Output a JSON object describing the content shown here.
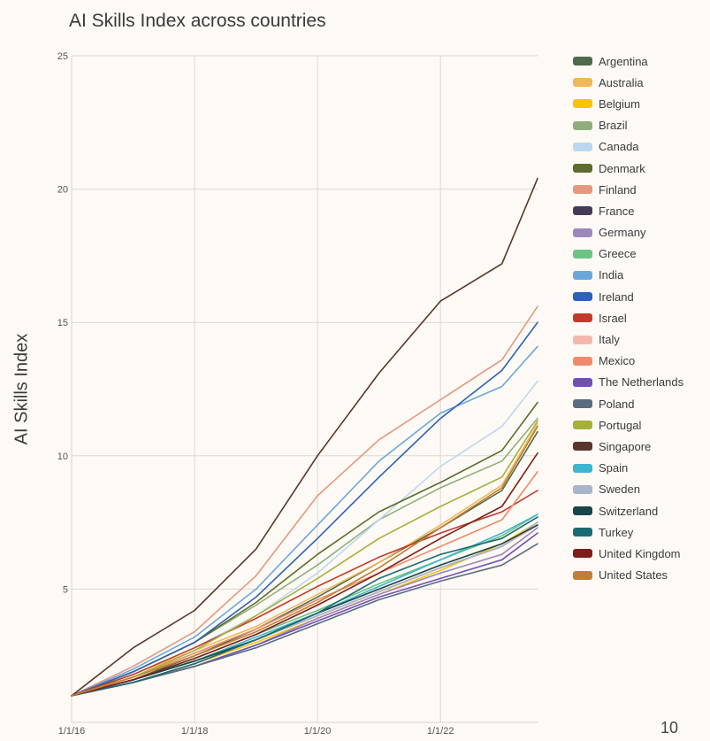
{
  "page_number": "10",
  "chart_data": {
    "type": "line",
    "title": "AI Skills Index across countries",
    "xlabel": "",
    "ylabel": "AI Skills Index",
    "x": [
      "1/1/16",
      "1/1/17",
      "1/1/18",
      "1/1/19",
      "1/1/20",
      "1/1/21",
      "1/1/22",
      "1/1/23",
      "8/1/23"
    ],
    "xticks": [
      "1/1/16",
      "1/1/18",
      "1/1/20",
      "1/1/22"
    ],
    "yticks": [
      5,
      10,
      15,
      20,
      25
    ],
    "ylim": [
      1,
      25
    ],
    "grid": true,
    "legend_position": "right",
    "series": [
      {
        "name": "Argentina",
        "color": "#4f6a4c",
        "values": [
          1,
          1.6,
          2.5,
          3.5,
          4.7,
          6.0,
          7.3,
          8.7,
          10.9
        ]
      },
      {
        "name": "Australia",
        "color": "#f0b85a",
        "values": [
          1,
          1.8,
          2.7,
          3.6,
          4.8,
          6.0,
          7.4,
          8.9,
          11.2
        ]
      },
      {
        "name": "Belgium",
        "color": "#f6c400",
        "values": [
          1,
          1.5,
          2.2,
          3.0,
          3.9,
          4.8,
          5.7,
          6.7,
          7.5
        ]
      },
      {
        "name": "Brazil",
        "color": "#8fae7c",
        "values": [
          1,
          1.9,
          3.0,
          4.4,
          5.9,
          7.6,
          8.8,
          9.8,
          11.4
        ]
      },
      {
        "name": "Canada",
        "color": "#bcd8ee",
        "values": [
          1,
          1.8,
          2.8,
          4.0,
          5.6,
          7.6,
          9.6,
          11.1,
          12.8
        ]
      },
      {
        "name": "Denmark",
        "color": "#5d6b2c",
        "values": [
          1,
          1.9,
          3.0,
          4.5,
          6.3,
          7.9,
          9.0,
          10.2,
          12.0
        ]
      },
      {
        "name": "Finland",
        "color": "#e4997f",
        "values": [
          1,
          2.1,
          3.4,
          5.5,
          8.5,
          10.6,
          12.1,
          13.6,
          15.6
        ]
      },
      {
        "name": "France",
        "color": "#463b57",
        "values": [
          1,
          1.6,
          2.3,
          3.1,
          4.0,
          4.9,
          5.8,
          6.6,
          7.4
        ]
      },
      {
        "name": "Germany",
        "color": "#9c87bd",
        "values": [
          1,
          1.5,
          2.1,
          2.9,
          3.9,
          4.8,
          5.6,
          6.3,
          7.3
        ]
      },
      {
        "name": "Greece",
        "color": "#6cc386",
        "values": [
          1,
          1.6,
          2.4,
          3.3,
          4.2,
          5.2,
          6.1,
          7.0,
          7.8
        ]
      },
      {
        "name": "India",
        "color": "#6ca7dc",
        "values": [
          1,
          2.0,
          3.2,
          5.0,
          7.4,
          9.8,
          11.6,
          12.6,
          14.1
        ]
      },
      {
        "name": "Ireland",
        "color": "#2d62b0",
        "values": [
          1,
          1.9,
          3.0,
          4.7,
          6.9,
          9.2,
          11.4,
          13.2,
          15.0
        ]
      },
      {
        "name": "Israel",
        "color": "#c13a2c",
        "values": [
          1,
          1.8,
          2.8,
          3.9,
          5.1,
          6.2,
          7.1,
          7.9,
          8.7
        ]
      },
      {
        "name": "Italy",
        "color": "#f4b7ae",
        "values": [
          1,
          1.6,
          2.3,
          3.1,
          4.0,
          4.9,
          5.8,
          6.6,
          7.4
        ]
      },
      {
        "name": "Mexico",
        "color": "#ef8a6a",
        "values": [
          1,
          1.7,
          2.6,
          3.5,
          4.6,
          5.6,
          6.6,
          7.6,
          9.4
        ]
      },
      {
        "name": "The Netherlands",
        "color": "#6f50b5",
        "values": [
          1,
          1.5,
          2.1,
          2.9,
          3.8,
          4.7,
          5.4,
          6.1,
          7.1
        ]
      },
      {
        "name": "Poland",
        "color": "#5a6c80",
        "values": [
          1,
          1.5,
          2.1,
          2.8,
          3.7,
          4.6,
          5.3,
          5.9,
          6.7
        ]
      },
      {
        "name": "Portugal",
        "color": "#a7b03b",
        "values": [
          1,
          1.7,
          2.7,
          4.0,
          5.4,
          6.9,
          8.1,
          9.2,
          11.3
        ]
      },
      {
        "name": "Singapore",
        "color": "#5a352d",
        "values": [
          1,
          2.8,
          4.2,
          6.5,
          10.0,
          13.1,
          15.8,
          17.2,
          20.4
        ]
      },
      {
        "name": "Spain",
        "color": "#3eb6cf",
        "values": [
          1,
          1.6,
          2.3,
          3.2,
          4.1,
          5.1,
          6.1,
          7.1,
          7.8
        ]
      },
      {
        "name": "Sweden",
        "color": "#a7b4c9",
        "values": [
          1,
          1.6,
          2.3,
          3.1,
          4.0,
          4.9,
          5.8,
          6.6,
          7.5
        ]
      },
      {
        "name": "Switzerland",
        "color": "#174548",
        "values": [
          1,
          1.6,
          2.3,
          3.1,
          4.1,
          5.0,
          5.9,
          6.7,
          7.4
        ]
      },
      {
        "name": "Turkey",
        "color": "#1b6b73",
        "values": [
          1,
          1.5,
          2.2,
          3.1,
          4.1,
          5.4,
          6.3,
          6.9,
          7.7
        ]
      },
      {
        "name": "United Kingdom",
        "color": "#7c1f1b",
        "values": [
          1,
          1.6,
          2.4,
          3.3,
          4.4,
          5.6,
          6.9,
          8.1,
          10.1
        ]
      },
      {
        "name": "United States",
        "color": "#c17f2e",
        "values": [
          1,
          1.7,
          2.5,
          3.4,
          4.5,
          5.8,
          7.3,
          8.8,
          11.1
        ]
      }
    ]
  }
}
